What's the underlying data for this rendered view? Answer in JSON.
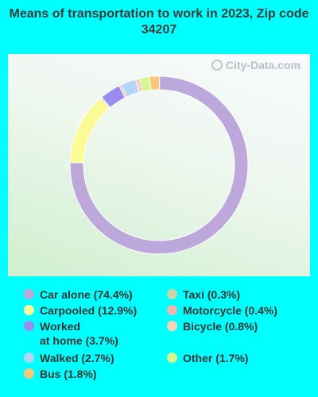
{
  "chart_data": {
    "type": "pie",
    "title": "Means of transportation to work in 2023, Zip code 34207",
    "slices": [
      {
        "label": "Car alone",
        "legend": "Car alone (74.4%)",
        "value": 74.4,
        "color": "#bca8da"
      },
      {
        "label": "Taxi",
        "legend": "Taxi (0.3%)",
        "value": 0.3,
        "color": "#c9d7a6"
      },
      {
        "label": "Carpooled",
        "legend": "Carpooled (12.9%)",
        "value": 12.9,
        "color": "#fbfb95"
      },
      {
        "label": "Motorcycle",
        "legend": "Motorcycle (0.4%)",
        "value": 0.4,
        "color": "#efb5ae"
      },
      {
        "label": "Worked at home",
        "legend": "Worked\nat home (3.7%)",
        "value": 3.7,
        "color": "#9a8cef"
      },
      {
        "label": "Bicycle",
        "legend": "Bicycle (0.8%)",
        "value": 0.8,
        "color": "#f8d3b6"
      },
      {
        "label": "Walked",
        "legend": "Walked (2.7%)",
        "value": 2.7,
        "color": "#b3d6f8"
      },
      {
        "label": "Other",
        "legend": "Other (1.7%)",
        "value": 1.7,
        "color": "#d2f791"
      },
      {
        "label": "Bus",
        "legend": "Bus (1.8%)",
        "value": 1.8,
        "color": "#f9c77a"
      }
    ],
    "legend_placement": "bottom"
  },
  "watermark": "City-Data.com",
  "watermark_icon": "globe-icon"
}
